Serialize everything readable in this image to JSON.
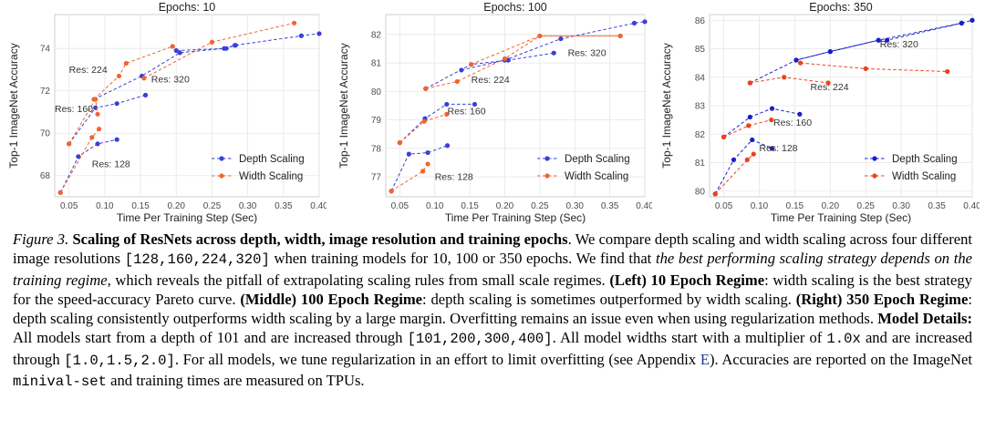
{
  "chart_data": [
    {
      "type": "line",
      "title": "Epochs: 10",
      "xlabel": "Time Per Training Step (Sec)",
      "ylabel": "Top-1 ImageNet Accuracy",
      "xlim": [
        0.03,
        0.4
      ],
      "ylim": [
        67.0,
        75.6
      ],
      "xticks": [
        0.05,
        0.1,
        0.15,
        0.2,
        0.25,
        0.3,
        0.35,
        0.4
      ],
      "xtick_labels": [
        "0.05",
        "0.10",
        "0.15",
        "0.20",
        "0.25",
        "0.30",
        "0.35",
        "0.40"
      ],
      "yticks": [
        68,
        70,
        72,
        74
      ],
      "ytick_labels": [
        "68",
        "70",
        "72",
        "74"
      ],
      "grid": true,
      "legend_position": "bottom-right",
      "series": [
        {
          "name": "Depth Scaling",
          "color": "#3a3fd6",
          "groups": [
            [
              [
                0.038,
                67.2
              ],
              [
                0.063,
                68.9
              ],
              [
                0.09,
                69.5
              ],
              [
                0.117,
                69.7
              ]
            ],
            [
              [
                0.05,
                69.5
              ],
              [
                0.087,
                71.2
              ],
              [
                0.117,
                71.4
              ],
              [
                0.157,
                71.8
              ]
            ],
            [
              [
                0.085,
                71.6
              ],
              [
                0.152,
                72.7
              ],
              [
                0.205,
                73.8
              ],
              [
                0.267,
                74.0
              ],
              [
                0.282,
                74.15
              ]
            ],
            [
              [
                0.2,
                73.9
              ],
              [
                0.27,
                74.0
              ],
              [
                0.283,
                74.15
              ],
              [
                0.375,
                74.6
              ],
              [
                0.4,
                74.7
              ]
            ]
          ]
        },
        {
          "name": "Width Scaling",
          "color": "#f26430",
          "groups": [
            [
              [
                0.038,
                67.2
              ],
              [
                0.082,
                69.8
              ],
              [
                0.092,
                70.2
              ]
            ],
            [
              [
                0.05,
                69.5
              ],
              [
                0.087,
                71.6
              ],
              [
                0.09,
                70.9
              ]
            ],
            [
              [
                0.085,
                71.6
              ],
              [
                0.12,
                72.7
              ],
              [
                0.13,
                73.3
              ],
              [
                0.195,
                74.1
              ]
            ],
            [
              [
                0.155,
                72.6
              ],
              [
                0.25,
                74.3
              ],
              [
                0.365,
                75.2
              ]
            ]
          ]
        }
      ],
      "annotations": [
        {
          "text": "Res: 128",
          "x": 0.082,
          "y": 68.4
        },
        {
          "text": "Res: 160",
          "x": 0.03,
          "y": 71.0
        },
        {
          "text": "Res: 224",
          "x": 0.05,
          "y": 72.85
        },
        {
          "text": "Res: 320",
          "x": 0.165,
          "y": 72.4
        }
      ]
    },
    {
      "type": "line",
      "title": "Epochs: 100",
      "xlabel": "Time Per Training Step (Sec)",
      "ylabel": "Top-1 ImageNet Accuracy",
      "xlim": [
        0.03,
        0.4
      ],
      "ylim": [
        76.3,
        82.7
      ],
      "xticks": [
        0.05,
        0.1,
        0.15,
        0.2,
        0.25,
        0.3,
        0.35,
        0.4
      ],
      "xtick_labels": [
        "0.05",
        "0.10",
        "0.15",
        "0.20",
        "0.25",
        "0.30",
        "0.35",
        "0.40"
      ],
      "yticks": [
        77,
        78,
        79,
        80,
        81,
        82
      ],
      "ytick_labels": [
        "77",
        "78",
        "79",
        "80",
        "81",
        "82"
      ],
      "grid": true,
      "legend_position": "bottom-right",
      "series": [
        {
          "name": "Depth Scaling",
          "color": "#3a3fd6",
          "groups": [
            [
              [
                0.038,
                76.5
              ],
              [
                0.063,
                77.8
              ],
              [
                0.09,
                77.85
              ],
              [
                0.118,
                78.1
              ]
            ],
            [
              [
                0.05,
                78.2
              ],
              [
                0.086,
                79.05
              ],
              [
                0.117,
                79.55
              ],
              [
                0.157,
                79.55
              ]
            ],
            [
              [
                0.087,
                80.1
              ],
              [
                0.152,
                80.95
              ],
              [
                0.205,
                81.1
              ],
              [
                0.27,
                81.35
              ]
            ],
            [
              [
                0.138,
                80.75
              ],
              [
                0.2,
                81.1
              ],
              [
                0.28,
                81.85
              ],
              [
                0.385,
                82.4
              ],
              [
                0.4,
                82.45
              ]
            ]
          ]
        },
        {
          "name": "Width Scaling",
          "color": "#f26430",
          "groups": [
            [
              [
                0.038,
                76.5
              ],
              [
                0.083,
                77.2
              ],
              [
                0.09,
                77.45
              ]
            ],
            [
              [
                0.05,
                78.2
              ],
              [
                0.085,
                78.95
              ],
              [
                0.117,
                79.2
              ]
            ],
            [
              [
                0.087,
                80.1
              ],
              [
                0.132,
                80.35
              ],
              [
                0.2,
                81.15
              ],
              [
                0.25,
                81.95
              ],
              [
                0.365,
                81.95
              ]
            ],
            [
              [
                0.152,
                80.95
              ],
              [
                0.25,
                81.95
              ],
              [
                0.365,
                81.95
              ]
            ]
          ]
        }
      ],
      "annotations": [
        {
          "text": "Res: 128",
          "x": 0.1,
          "y": 76.9
        },
        {
          "text": "Res: 160",
          "x": 0.118,
          "y": 79.2
        },
        {
          "text": "Res: 224",
          "x": 0.152,
          "y": 80.3
        },
        {
          "text": "Res: 320",
          "x": 0.29,
          "y": 81.25
        }
      ]
    },
    {
      "type": "line",
      "title": "Epochs: 350",
      "xlabel": "Time Per Training Step (Sec)",
      "ylabel": "Top-1 ImageNet Accuracy",
      "xlim": [
        0.03,
        0.4
      ],
      "ylim": [
        79.8,
        86.2
      ],
      "xticks": [
        0.05,
        0.1,
        0.15,
        0.2,
        0.25,
        0.3,
        0.35,
        0.4
      ],
      "xtick_labels": [
        "0.05",
        "0.10",
        "0.15",
        "0.20",
        "0.25",
        "0.30",
        "0.35",
        "0.40"
      ],
      "yticks": [
        80,
        81,
        82,
        83,
        84,
        85,
        86
      ],
      "ytick_labels": [
        "80",
        "81",
        "82",
        "83",
        "84",
        "85",
        "86"
      ],
      "grid": true,
      "legend_position": "bottom-right",
      "series": [
        {
          "name": "Depth Scaling",
          "color": "#1a1fc8",
          "groups": [
            [
              [
                0.038,
                79.9
              ],
              [
                0.064,
                81.1
              ],
              [
                0.09,
                81.8
              ],
              [
                0.118,
                81.5
              ]
            ],
            [
              [
                0.05,
                81.9
              ],
              [
                0.087,
                82.6
              ],
              [
                0.118,
                82.9
              ],
              [
                0.157,
                82.7
              ]
            ],
            [
              [
                0.087,
                83.8
              ],
              [
                0.152,
                84.6
              ],
              [
                0.2,
                84.9
              ],
              [
                0.268,
                85.3
              ],
              [
                0.28,
                85.3
              ],
              [
                0.385,
                85.9
              ]
            ],
            [
              [
                0.152,
                84.6
              ],
              [
                0.2,
                84.9
              ],
              [
                0.268,
                85.3
              ],
              [
                0.385,
                85.9
              ],
              [
                0.4,
                86.0
              ]
            ]
          ]
        },
        {
          "name": "Width Scaling",
          "color": "#f0401a",
          "groups": [
            [
              [
                0.038,
                79.9
              ],
              [
                0.083,
                81.1
              ],
              [
                0.092,
                81.3
              ]
            ],
            [
              [
                0.05,
                81.9
              ],
              [
                0.085,
                82.3
              ],
              [
                0.117,
                82.5
              ]
            ],
            [
              [
                0.087,
                83.8
              ],
              [
                0.135,
                84.0
              ],
              [
                0.197,
                83.8
              ]
            ],
            [
              [
                0.158,
                84.5
              ],
              [
                0.25,
                84.3
              ],
              [
                0.365,
                84.2
              ]
            ]
          ]
        }
      ],
      "annotations": [
        {
          "text": "Res: 128",
          "x": 0.1,
          "y": 81.4
        },
        {
          "text": "Res: 160",
          "x": 0.12,
          "y": 82.3
        },
        {
          "text": "Res: 224",
          "x": 0.172,
          "y": 83.55
        },
        {
          "text": "Res: 320",
          "x": 0.27,
          "y": 85.05
        }
      ]
    }
  ],
  "caption": {
    "fig_label": "Figure 3.",
    "fig_title": "Scaling of ResNets across depth, width, image resolution and training epochs",
    "t1": ". We compare depth scaling and width scaling across four different image resolutions ",
    "res_list": "[128,160,224,320]",
    "t2": " when training models for 10, 100 or 350 epochs. We find that ",
    "finding": "the best performing scaling strategy depends on the training regime",
    "t3": ", which reveals the pitfall of extrapolating scaling rules from small scale regimes. ",
    "left_label": "(Left) 10 Epoch Regime",
    "left_text": ": width scaling is the best strategy for the speed-accuracy Pareto curve. ",
    "middle_label": "(Middle) 100 Epoch Regime",
    "middle_text": ": depth scaling is sometimes outperformed by width scaling. ",
    "right_label": "(Right) 350 Epoch Regime",
    "right_text": ": depth scaling consistently outperforms width scaling by a large margin. Overfitting remains an issue even when using regularization methods. ",
    "details_label": "Model Details:",
    "details_text": " All models start from a depth of 101 and are increased through ",
    "depth_list": "[101,200,300,400]",
    "t4": ". All model widths start with a multiplier of ",
    "width_start": "1.0x",
    "t5": " and are increased through ",
    "width_list": "[1.0,1.5,2.0]",
    "t6": ". For all models, we tune regularization in an effort to limit overfitting (see Appendix ",
    "appendix": "E",
    "t7": "). Accuracies are reported on the ImageNet ",
    "minival": "minival-set",
    "t8": " and training times are measured on TPUs."
  }
}
